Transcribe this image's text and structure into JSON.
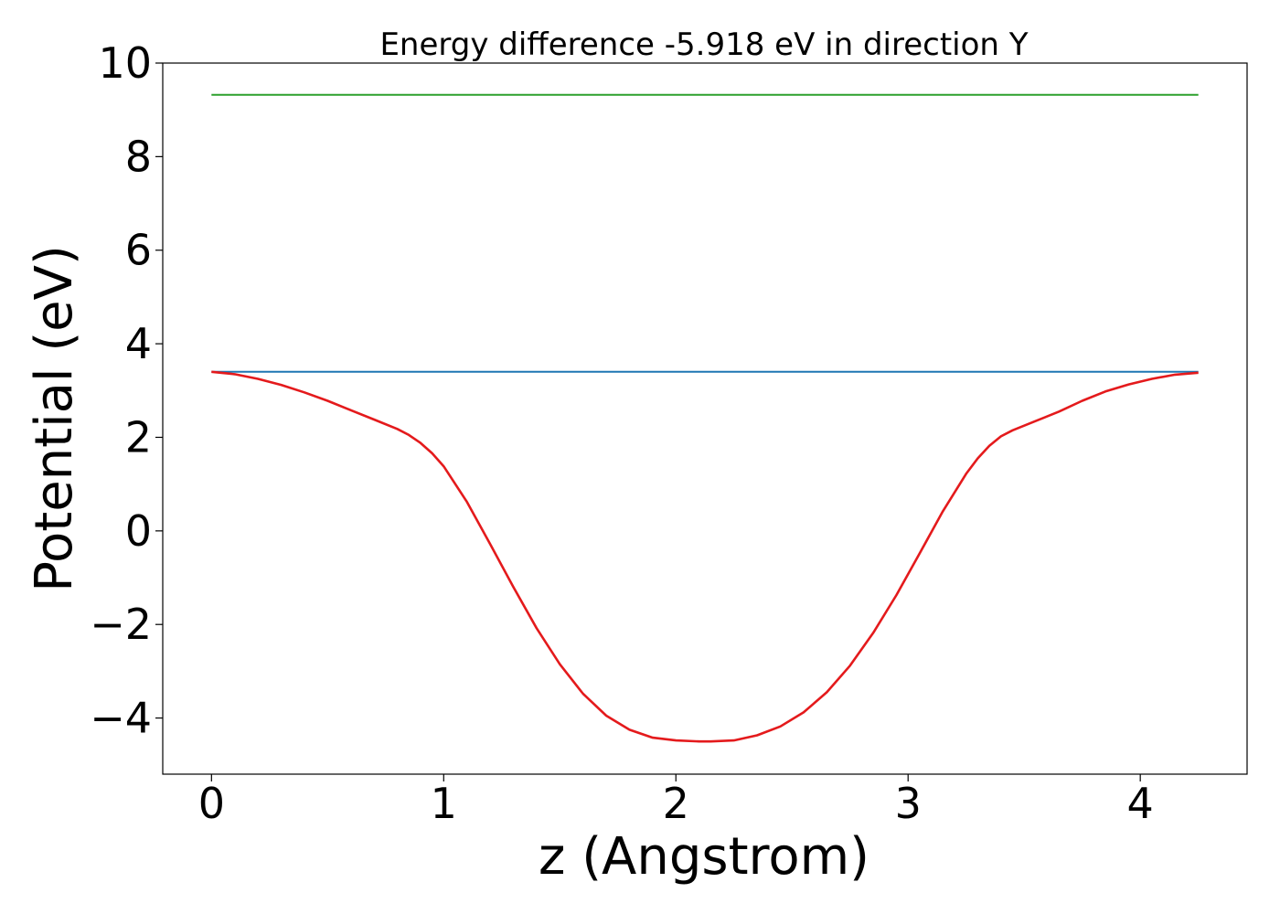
{
  "chart_data": {
    "type": "line",
    "title": "Energy difference -5.918 eV in direction Y",
    "xlabel": "z (Angstrom)",
    "ylabel": "Potential (eV)",
    "xlim": [
      -0.21,
      4.46
    ],
    "ylim": [
      -5.2,
      10.0
    ],
    "xticks": [
      0,
      1,
      2,
      3,
      4
    ],
    "yticks": [
      -4,
      -2,
      0,
      2,
      4,
      6,
      8,
      10
    ],
    "xtick_labels": [
      "0",
      "1",
      "2",
      "3",
      "4"
    ],
    "ytick_labels": [
      "−4",
      "−2",
      "0",
      "2",
      "4",
      "6",
      "8",
      "10"
    ],
    "grid": false,
    "legend": "none",
    "series": [
      {
        "color": "#2ca02c",
        "x": [
          0.0,
          4.25
        ],
        "y": [
          9.32,
          9.32
        ]
      },
      {
        "color": "#1f77b4",
        "x": [
          0.0,
          4.25
        ],
        "y": [
          3.4,
          3.4
        ]
      },
      {
        "color": "#e41a1c",
        "x": [
          0.0,
          0.1,
          0.2,
          0.3,
          0.4,
          0.5,
          0.6,
          0.7,
          0.8,
          0.85,
          0.9,
          0.95,
          1.0,
          1.1,
          1.2,
          1.3,
          1.4,
          1.5,
          1.6,
          1.7,
          1.8,
          1.9,
          2.0,
          2.1,
          2.15,
          2.25,
          2.35,
          2.45,
          2.55,
          2.65,
          2.75,
          2.85,
          2.95,
          3.05,
          3.15,
          3.25,
          3.3,
          3.35,
          3.4,
          3.45,
          3.55,
          3.65,
          3.75,
          3.85,
          3.95,
          4.05,
          4.15,
          4.25
        ],
        "y": [
          3.4,
          3.35,
          3.25,
          3.12,
          2.96,
          2.78,
          2.58,
          2.38,
          2.18,
          2.05,
          1.88,
          1.66,
          1.38,
          0.62,
          -0.28,
          -1.2,
          -2.08,
          -2.85,
          -3.48,
          -3.95,
          -4.25,
          -4.42,
          -4.48,
          -4.5,
          -4.5,
          -4.48,
          -4.37,
          -4.18,
          -3.88,
          -3.45,
          -2.88,
          -2.18,
          -1.37,
          -0.48,
          0.42,
          1.22,
          1.55,
          1.82,
          2.02,
          2.15,
          2.35,
          2.55,
          2.78,
          2.98,
          3.13,
          3.25,
          3.34,
          3.38
        ]
      }
    ]
  }
}
